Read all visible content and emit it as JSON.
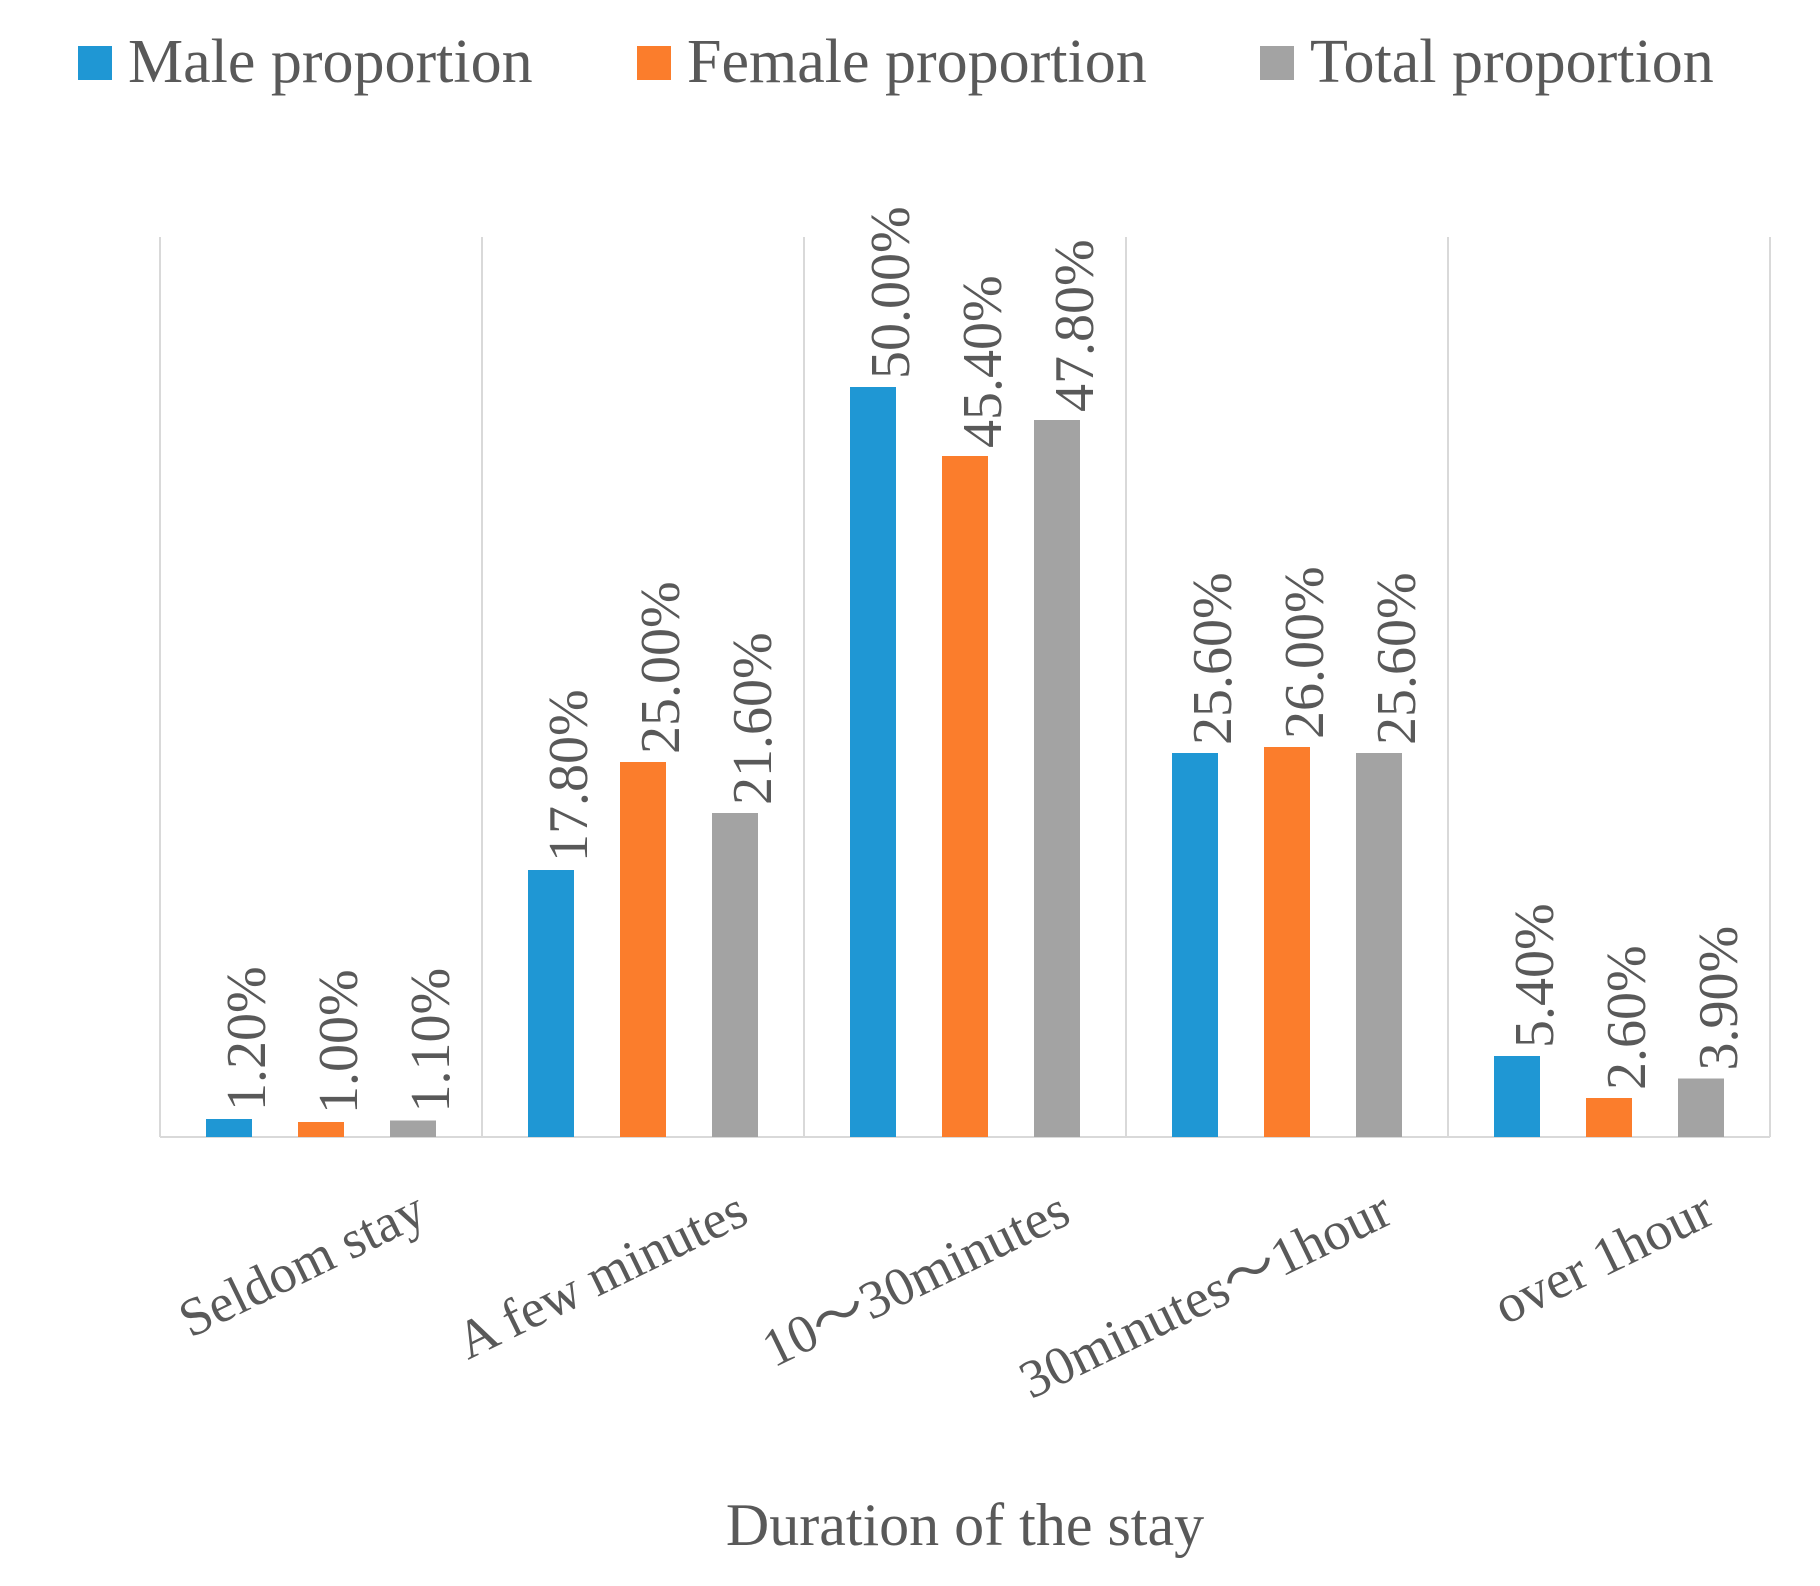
{
  "chart_data": {
    "type": "bar",
    "title": "",
    "xlabel": "Duration of the stay",
    "ylabel": "",
    "ylim": [
      0,
      60
    ],
    "grid": "vertical category separators",
    "legend_position": "top",
    "categories": [
      "Seldom stay",
      "A few minutes",
      "10～30minutes",
      "30minutes～1hour",
      "over 1hour"
    ],
    "series": [
      {
        "name": "Male proportion",
        "color": "#1f97d4",
        "values": [
          1.2,
          17.8,
          50.0,
          25.6,
          5.4
        ],
        "labels": [
          "1.20%",
          "17.80%",
          "50.00%",
          "25.60%",
          "5.40%"
        ]
      },
      {
        "name": "Female proportion",
        "color": "#fb7d2c",
        "values": [
          1.0,
          25.0,
          45.4,
          26.0,
          2.6
        ],
        "labels": [
          "1.00%",
          "25.00%",
          "45.40%",
          "26.00%",
          "2.60%"
        ]
      },
      {
        "name": "Total proportion",
        "color": "#a3a3a3",
        "values": [
          1.1,
          21.6,
          47.8,
          25.6,
          3.9
        ],
        "labels": [
          "1.10%",
          "21.60%",
          "47.80%",
          "25.60%",
          "3.90%"
        ]
      }
    ]
  },
  "colors": {
    "axis": "#d9d9d9",
    "text": "#595959"
  }
}
